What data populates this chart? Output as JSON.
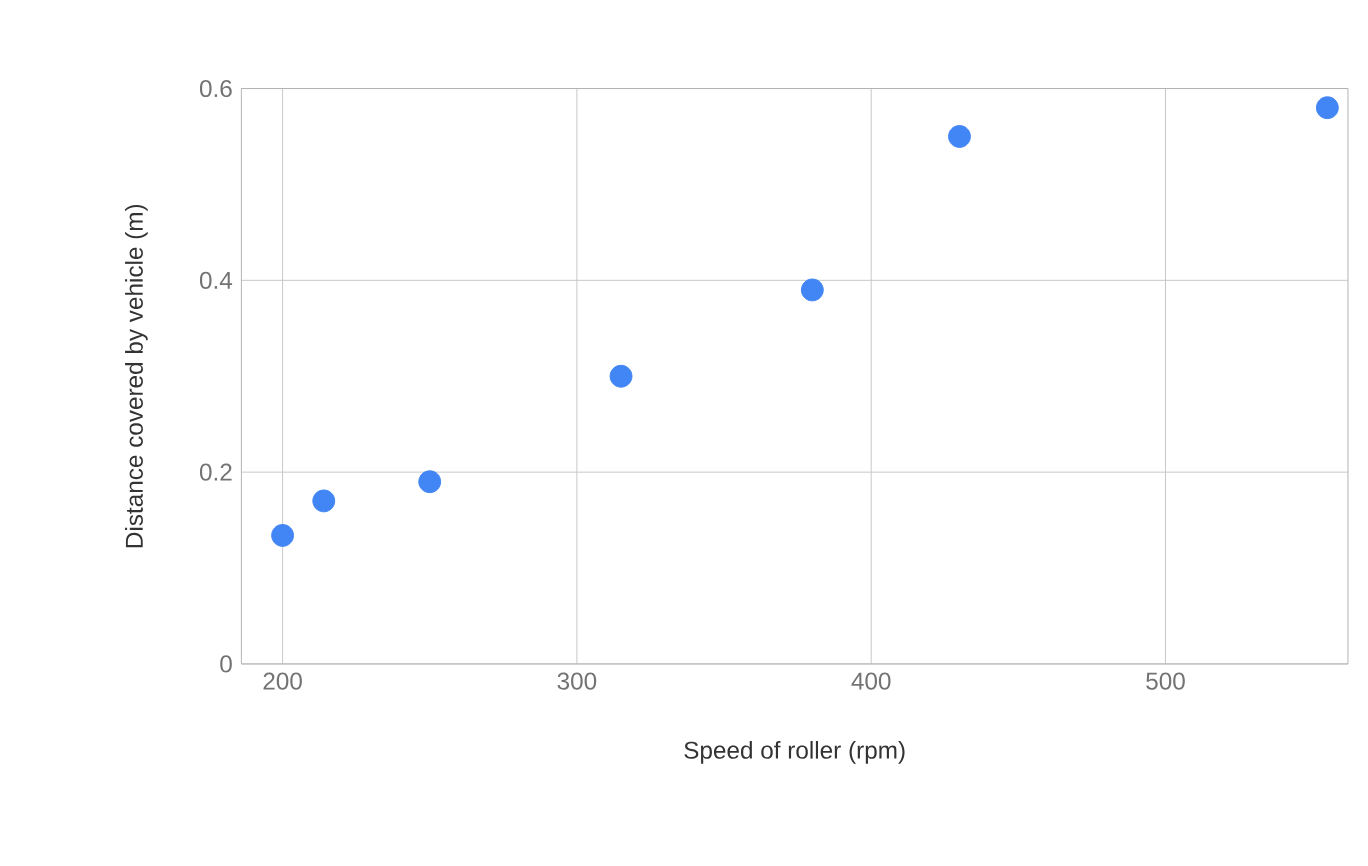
{
  "chart_data": {
    "type": "scatter",
    "xlabel": "Speed of roller (rpm)",
    "ylabel": "Distance covered by vehicle (m)",
    "x": [
      200,
      214,
      250,
      315,
      380,
      430,
      555
    ],
    "values": [
      0.134,
      0.17,
      0.19,
      0.3,
      0.39,
      0.55,
      0.58
    ],
    "color": "#4285f4",
    "marker": "circle",
    "grid": true,
    "xlim": [
      186,
      562
    ],
    "xticks": [
      200,
      300,
      400,
      500
    ],
    "ylim": [
      0,
      0.6
    ],
    "yticks": [
      0,
      0.2,
      0.4,
      0.6
    ]
  }
}
